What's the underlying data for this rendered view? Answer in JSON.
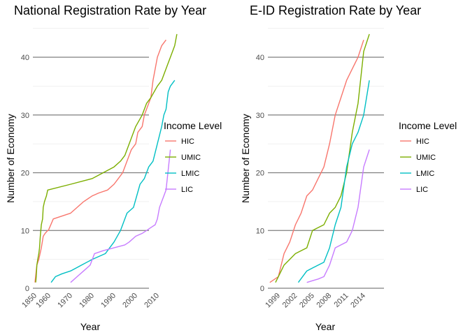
{
  "chart_data": [
    {
      "type": "line",
      "title": "National Registration Rate by Year",
      "xlabel": "Year",
      "ylabel": "Number of Economy",
      "xlim": [
        1850,
        2015
      ],
      "ylim": [
        0,
        44
      ],
      "x_ticks": [
        1850,
        1960,
        1970,
        1980,
        1990,
        2000,
        2010
      ],
      "y_ticks": [
        0,
        10,
        20,
        30,
        40
      ],
      "legend_title": "Income Level",
      "legend_position": "right",
      "series": [
        {
          "name": "HIC",
          "color": "#F8766D",
          "points": [
            [
              1850,
              1
            ],
            [
              1865,
              4
            ],
            [
              1880,
              5
            ],
            [
              1890,
              6
            ],
            [
              1900,
              7
            ],
            [
              1915,
              9
            ],
            [
              1930,
              9.5
            ],
            [
              1950,
              10
            ],
            [
              1955,
              10
            ],
            [
              1962,
              12
            ],
            [
              1966,
              12.5
            ],
            [
              1970,
              13
            ],
            [
              1973,
              14
            ],
            [
              1976,
              15
            ],
            [
              1980,
              16
            ],
            [
              1983,
              16.5
            ],
            [
              1987,
              17
            ],
            [
              1990,
              18
            ],
            [
              1992,
              19
            ],
            [
              1994,
              20
            ],
            [
              1996,
              22
            ],
            [
              1998,
              24
            ],
            [
              2000,
              25
            ],
            [
              2001,
              27
            ],
            [
              2003,
              28
            ],
            [
              2004,
              30
            ],
            [
              2006,
              32
            ],
            [
              2007,
              33
            ],
            [
              2008,
              36
            ],
            [
              2009,
              38
            ],
            [
              2010,
              40
            ],
            [
              2012,
              42
            ],
            [
              2014,
              43
            ]
          ]
        },
        {
          "name": "UMIC",
          "color": "#7CAE00",
          "points": [
            [
              1856,
              1
            ],
            [
              1860,
              2
            ],
            [
              1865,
              4
            ],
            [
              1872,
              5
            ],
            [
              1880,
              6
            ],
            [
              1886,
              7
            ],
            [
              1892,
              9
            ],
            [
              1900,
              11
            ],
            [
              1910,
              12
            ],
            [
              1915,
              14
            ],
            [
              1925,
              15
            ],
            [
              1940,
              16
            ],
            [
              1950,
              17
            ],
            [
              1970,
              18
            ],
            [
              1980,
              19
            ],
            [
              1985,
              20
            ],
            [
              1990,
              21
            ],
            [
              1993,
              22
            ],
            [
              1995,
              23
            ],
            [
              1997,
              25
            ],
            [
              2000,
              28
            ],
            [
              2003,
              30
            ],
            [
              2005,
              32
            ],
            [
              2007,
              33
            ],
            [
              2010,
              35
            ],
            [
              2012,
              36
            ],
            [
              2015,
              39
            ],
            [
              2016,
              40
            ],
            [
              2017,
              41
            ],
            [
              2018,
              42
            ],
            [
              2019,
              44
            ]
          ]
        },
        {
          "name": "LMIC",
          "color": "#00BFC4",
          "points": [
            [
              1961,
              1
            ],
            [
              1963,
              2
            ],
            [
              1966,
              2.5
            ],
            [
              1970,
              3
            ],
            [
              1975,
              4
            ],
            [
              1980,
              5
            ],
            [
              1983,
              5.5
            ],
            [
              1986,
              6
            ],
            [
              1988,
              7
            ],
            [
              1990,
              8
            ],
            [
              1993,
              10
            ],
            [
              1996,
              13
            ],
            [
              1999,
              14
            ],
            [
              2002,
              18
            ],
            [
              2004,
              19
            ],
            [
              2006,
              21
            ],
            [
              2008,
              22
            ],
            [
              2010,
              25
            ],
            [
              2012,
              28
            ],
            [
              2013,
              30
            ],
            [
              2014,
              31
            ],
            [
              2015,
              34
            ],
            [
              2016,
              35
            ],
            [
              2018,
              36
            ]
          ]
        },
        {
          "name": "LIC",
          "color": "#C77CFF",
          "points": [
            [
              1970,
              1
            ],
            [
              1973,
              2
            ],
            [
              1976,
              3
            ],
            [
              1979,
              4
            ],
            [
              1981,
              6
            ],
            [
              1985,
              6.5
            ],
            [
              1990,
              7
            ],
            [
              1995,
              7.5
            ],
            [
              1997,
              8
            ],
            [
              2000,
              9
            ],
            [
              2003,
              9.5
            ],
            [
              2005,
              10
            ],
            [
              2007,
              10.5
            ],
            [
              2009,
              11
            ],
            [
              2010,
              12
            ],
            [
              2011,
              14
            ],
            [
              2012,
              15
            ],
            [
              2013,
              16
            ],
            [
              2014,
              17
            ],
            [
              2016,
              24
            ]
          ]
        }
      ]
    },
    {
      "type": "line",
      "title": "E-ID Registration Rate by Year",
      "xlabel": "Year",
      "ylabel": "Number of Economy",
      "xlim": [
        1997.5,
        2015.5
      ],
      "ylim": [
        0,
        44
      ],
      "x_ticks": [
        1999,
        2002,
        2005,
        2008,
        2011,
        2014
      ],
      "y_ticks": [
        0,
        10,
        20,
        30,
        40
      ],
      "legend_title": "Income Level",
      "legend_position": "right",
      "series": [
        {
          "name": "HIC",
          "color": "#F8766D",
          "points": [
            [
              1997.5,
              1
            ],
            [
              1999,
              2
            ],
            [
              2000,
              6
            ],
            [
              2001,
              8
            ],
            [
              2002,
              11
            ],
            [
              2003,
              13
            ],
            [
              2004,
              16
            ],
            [
              2005,
              17
            ],
            [
              2006,
              19
            ],
            [
              2007,
              21
            ],
            [
              2008,
              25
            ],
            [
              2009,
              30
            ],
            [
              2010,
              33
            ],
            [
              2011,
              36
            ],
            [
              2012,
              38
            ],
            [
              2013,
              40
            ],
            [
              2014,
              43
            ]
          ]
        },
        {
          "name": "UMIC",
          "color": "#7CAE00",
          "points": [
            [
              1998.5,
              1
            ],
            [
              1999,
              2
            ],
            [
              2000,
              4
            ],
            [
              2001,
              5
            ],
            [
              2002,
              6
            ],
            [
              2003,
              6.5
            ],
            [
              2004,
              7
            ],
            [
              2005,
              10
            ],
            [
              2006,
              10.5
            ],
            [
              2007,
              11
            ],
            [
              2008,
              13
            ],
            [
              2009,
              14
            ],
            [
              2010,
              16
            ],
            [
              2011,
              20
            ],
            [
              2012,
              27
            ],
            [
              2013,
              32
            ],
            [
              2014,
              41
            ],
            [
              2015,
              44
            ]
          ]
        },
        {
          "name": "LMIC",
          "color": "#00BFC4",
          "points": [
            [
              2002.5,
              1
            ],
            [
              2004,
              3
            ],
            [
              2005,
              3.5
            ],
            [
              2006,
              4
            ],
            [
              2007,
              4.5
            ],
            [
              2008,
              7
            ],
            [
              2009,
              11
            ],
            [
              2010,
              14
            ],
            [
              2011,
              21
            ],
            [
              2012,
              25
            ],
            [
              2013,
              27
            ],
            [
              2014,
              30
            ],
            [
              2015,
              36
            ]
          ]
        },
        {
          "name": "LIC",
          "color": "#C77CFF",
          "points": [
            [
              2004,
              1
            ],
            [
              2005,
              1.3
            ],
            [
              2006,
              1.6
            ],
            [
              2007,
              2
            ],
            [
              2008,
              4
            ],
            [
              2009,
              7
            ],
            [
              2010,
              7.5
            ],
            [
              2011,
              8
            ],
            [
              2012,
              10
            ],
            [
              2013,
              14
            ],
            [
              2014,
              21
            ],
            [
              2015,
              24
            ]
          ]
        }
      ]
    }
  ]
}
